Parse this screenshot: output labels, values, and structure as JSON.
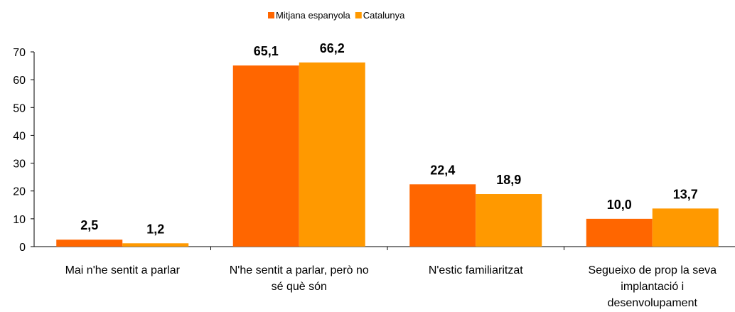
{
  "chart_data": {
    "type": "bar",
    "categories": [
      "Mai n'he sentit a parlar",
      "N'he sentit a parlar, però no sé què són",
      "N'estic familiaritzat",
      "Segueixo de prop la seva implantació i desenvolupament"
    ],
    "series": [
      {
        "name": "Mitjana espanyola",
        "color": "#ff6600",
        "values": [
          2.5,
          65.1,
          22.4,
          10.0
        ],
        "value_labels": [
          "2,5",
          "65,1",
          "22,4",
          "10,0"
        ]
      },
      {
        "name": "Catalunya",
        "color": "#ff9900",
        "values": [
          1.2,
          66.2,
          18.9,
          13.7
        ],
        "value_labels": [
          "1,2",
          "66,2",
          "18,9",
          "13,7"
        ]
      }
    ],
    "ylim": [
      0,
      70
    ],
    "yticks": [
      0,
      10,
      20,
      30,
      40,
      50,
      60,
      70
    ],
    "legend": "top"
  }
}
